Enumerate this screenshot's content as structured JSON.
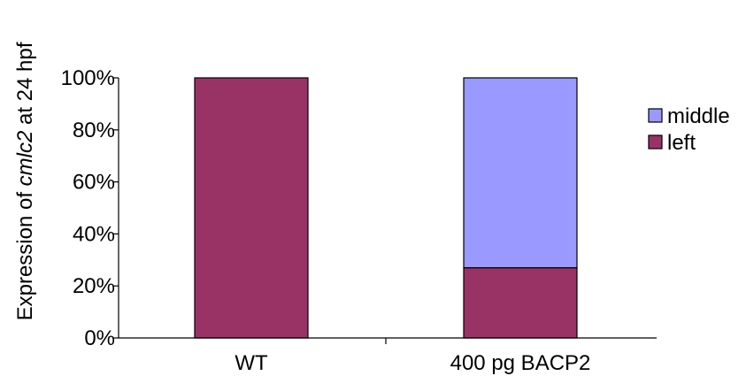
{
  "chart_data": {
    "type": "bar",
    "stacked": true,
    "categories": [
      "WT",
      "400 pg BACP2"
    ],
    "series": [
      {
        "name": "left",
        "color": "#993366",
        "values": [
          100,
          27
        ]
      },
      {
        "name": "middle",
        "color": "#9999FF",
        "values": [
          0,
          73
        ]
      }
    ],
    "ylabel_parts": [
      "Expression of ",
      "cmlc2",
      " at 24 hpf"
    ],
    "ylim": [
      0,
      100
    ],
    "yticks": [
      0,
      20,
      40,
      60,
      80,
      100
    ],
    "ytick_labels": [
      "0%",
      "20%",
      "40%",
      "60%",
      "80%",
      "100%"
    ],
    "legend": {
      "placement": "right",
      "order": [
        "middle",
        "left"
      ]
    },
    "grid": false
  }
}
